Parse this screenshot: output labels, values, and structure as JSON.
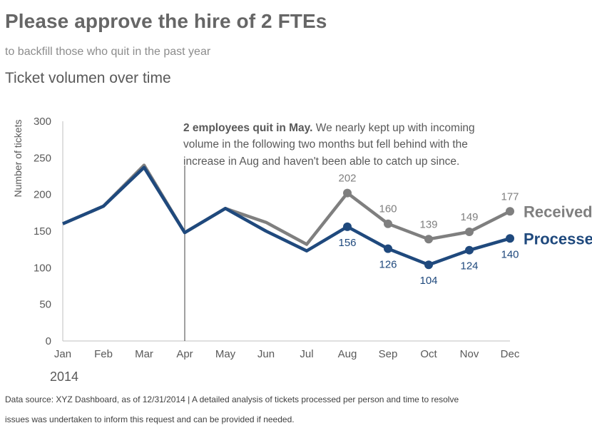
{
  "header": {
    "title": "Please approve the hire of 2 FTEs",
    "subtitle": "to backfill those who quit in the past year",
    "chart_title": "Ticket volumen over time"
  },
  "footnote": {
    "line1": "Data source: XYZ Dashboard, as of 12/31/2014 | A detailed analysis of tickets processed per person and time to resolve",
    "line2": "issues was undertaken to inform this request and can be provided if needed."
  },
  "annotation": {
    "bold": "2 employees quit in May.",
    "line1_rest": " We nearly kept up with incoming",
    "line2": "volume in the following two months but fell behind with the",
    "line3": "increase in Aug and haven't been able to catch up since."
  },
  "colors": {
    "received": "#7f7f7f",
    "processed": "#1f497d",
    "axis": "#bfbfbf"
  },
  "chart_data": {
    "type": "line",
    "categories": [
      "Jan",
      "Feb",
      "Mar",
      "Apr",
      "May",
      "Jun",
      "Jul",
      "Aug",
      "Sep",
      "Oct",
      "Nov",
      "Dec"
    ],
    "year_label": "2014",
    "ylabel": "Number of tickets",
    "ylim": [
      0,
      300
    ],
    "yticks": [
      0,
      50,
      100,
      150,
      200,
      250,
      300
    ],
    "reference_line_category": "Apr",
    "series": [
      {
        "name": "Received",
        "values": [
          160,
          184,
          240,
          148,
          181,
          162,
          132,
          202,
          160,
          139,
          149,
          177
        ],
        "labeled_from_index": 7
      },
      {
        "name": "Processed",
        "values": [
          160,
          184,
          237,
          148,
          181,
          150,
          123,
          156,
          126,
          104,
          124,
          140
        ],
        "labeled_from_index": 7
      }
    ]
  }
}
